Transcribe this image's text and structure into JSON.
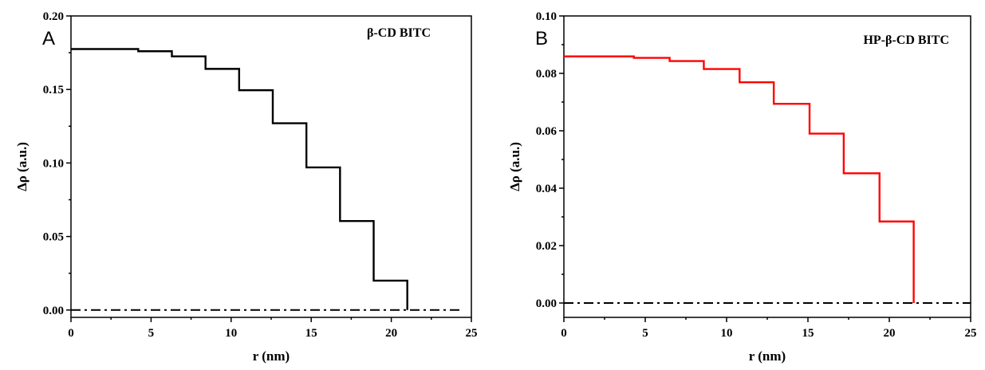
{
  "chart_data": [
    {
      "type": "line",
      "panel_label": "A",
      "legend_text": "β-CD BITC",
      "xlabel": "r (nm)",
      "ylabel": "Δρ (a.u.)",
      "xlim": [
        0,
        25
      ],
      "ylim": [
        -0.005,
        0.2
      ],
      "xticks": [
        0,
        5,
        10,
        15,
        20,
        25
      ],
      "xtick_labels": [
        "0",
        "5",
        "10",
        "15",
        "20",
        "25"
      ],
      "yticks": [
        0.0,
        0.05,
        0.1,
        0.15,
        0.2
      ],
      "ytick_labels": [
        "0.00",
        "0.05",
        "0.10",
        "0.15",
        "0.20"
      ],
      "grid": false,
      "series": [
        {
          "style": "step",
          "color": "#000000",
          "points": [
            [
              0,
              0.1775
            ],
            [
              4.2,
              0.1775
            ],
            [
              4.2,
              0.176
            ],
            [
              6.3,
              0.176
            ],
            [
              6.3,
              0.1725
            ],
            [
              8.4,
              0.1725
            ],
            [
              8.4,
              0.164
            ],
            [
              10.5,
              0.164
            ],
            [
              10.5,
              0.1495
            ],
            [
              12.6,
              0.1495
            ],
            [
              12.6,
              0.127
            ],
            [
              14.7,
              0.127
            ],
            [
              14.7,
              0.097
            ],
            [
              16.8,
              0.097
            ],
            [
              16.8,
              0.0605
            ],
            [
              18.9,
              0.0605
            ],
            [
              18.9,
              0.02
            ],
            [
              21.0,
              0.02
            ],
            [
              21.0,
              0.0
            ]
          ]
        },
        {
          "style": "dash-dot",
          "color": "#000000",
          "points": [
            [
              0,
              0.0
            ],
            [
              24.3,
              0.0
            ]
          ]
        }
      ]
    },
    {
      "type": "line",
      "panel_label": "B",
      "legend_text": "HP-β-CD BITC",
      "xlabel": "r (nm)",
      "ylabel": "Δρ (a.u.)",
      "xlim": [
        0,
        25
      ],
      "ylim": [
        -0.005,
        0.1
      ],
      "xticks": [
        0,
        5,
        10,
        15,
        20,
        25
      ],
      "xtick_labels": [
        "0",
        "5",
        "10",
        "15",
        "20",
        "25"
      ],
      "yticks": [
        0.0,
        0.02,
        0.04,
        0.06,
        0.08,
        0.1
      ],
      "ytick_labels": [
        "0.00",
        "0.02",
        "0.04",
        "0.06",
        "0.08",
        "0.10"
      ],
      "grid": false,
      "series": [
        {
          "style": "step",
          "color": "#ff0000",
          "points": [
            [
              0,
              0.0859
            ],
            [
              4.3,
              0.0859
            ],
            [
              4.3,
              0.0854
            ],
            [
              6.5,
              0.0854
            ],
            [
              6.5,
              0.0843
            ],
            [
              8.6,
              0.0843
            ],
            [
              8.6,
              0.0815
            ],
            [
              10.8,
              0.0815
            ],
            [
              10.8,
              0.0769
            ],
            [
              12.9,
              0.0769
            ],
            [
              12.9,
              0.0694
            ],
            [
              15.1,
              0.0694
            ],
            [
              15.1,
              0.059
            ],
            [
              17.2,
              0.059
            ],
            [
              17.2,
              0.0452
            ],
            [
              19.4,
              0.0452
            ],
            [
              19.4,
              0.0284
            ],
            [
              21.5,
              0.0284
            ],
            [
              21.5,
              0.0
            ]
          ]
        },
        {
          "style": "dash-dot",
          "color": "#000000",
          "points": [
            [
              0,
              0.0
            ],
            [
              25,
              0.0
            ]
          ]
        }
      ]
    }
  ]
}
